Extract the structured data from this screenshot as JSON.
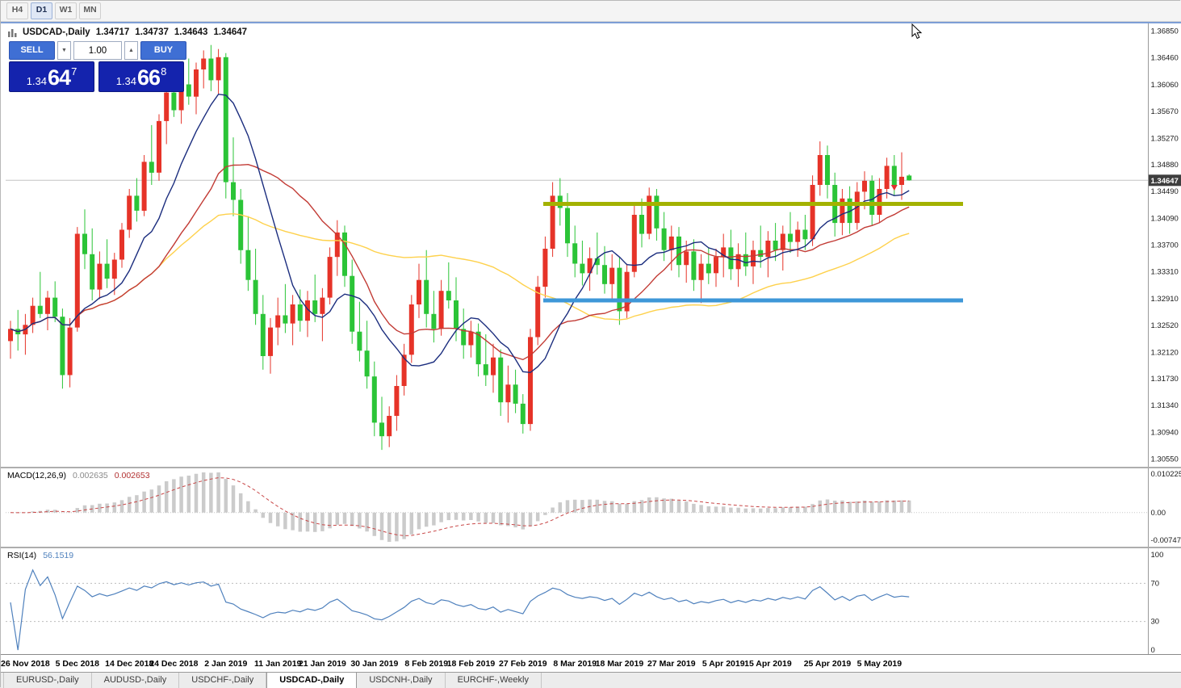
{
  "toolbar": {
    "periods": [
      "H4",
      "D1",
      "W1",
      "MN"
    ],
    "active": "D1"
  },
  "chart_header": {
    "symbol_title": "USDCAD-,Daily",
    "open": "1.34717",
    "high": "1.34737",
    "low": "1.34643",
    "close": "1.34647"
  },
  "trade_panel": {
    "sell_label": "SELL",
    "buy_label": "BUY",
    "volume": "1.00",
    "step_down_icon": "▼",
    "step_up_icon": "▲",
    "sell_price": {
      "prefix": "1.34",
      "big": "64",
      "sup": "7"
    },
    "buy_price": {
      "prefix": "1.34",
      "big": "66",
      "sup": "8"
    }
  },
  "price_scale": {
    "labels": [
      "1.36850",
      "1.36460",
      "1.36060",
      "1.35670",
      "1.35270",
      "1.34880",
      "1.34490",
      "1.34090",
      "1.33700",
      "1.33310",
      "1.32910",
      "1.32520",
      "1.32120",
      "1.31730",
      "1.31340",
      "1.30940",
      "1.30550"
    ],
    "bid": 1.34647,
    "bid_label": "1.34647",
    "badge_color": "#3e3e3e"
  },
  "indicators": {
    "macd": {
      "label": "MACD(12,26,9)",
      "value_main": "0.002635",
      "value_signal": "0.002653",
      "fast": 12,
      "slow": 26,
      "signal": 9,
      "scale_top": "0.010225",
      "scale_zero": "0.00",
      "scale_bottom": "-0.00747",
      "histogram_color": "#cbcbcb",
      "signal_color": "#c84646"
    },
    "rsi": {
      "label": "RSI(14)",
      "value": "56.1519",
      "period": 14,
      "levels": [
        70,
        30
      ],
      "scale_labels": [
        "100",
        "70",
        "30",
        "0"
      ],
      "line_color": "#4f81bd"
    }
  },
  "date_axis": [
    {
      "label": "26 Nov 2018",
      "idx": 2
    },
    {
      "label": "5 Dec 2018",
      "idx": 9
    },
    {
      "label": "14 Dec 2018",
      "idx": 16
    },
    {
      "label": "24 Dec 2018",
      "idx": 22
    },
    {
      "label": "2 Jan 2019",
      "idx": 29
    },
    {
      "label": "11 Jan 2019",
      "idx": 36
    },
    {
      "label": "21 Jan 2019",
      "idx": 42
    },
    {
      "label": "30 Jan 2019",
      "idx": 49
    },
    {
      "label": "8 Feb 2019",
      "idx": 56
    },
    {
      "label": "18 Feb 2019",
      "idx": 62
    },
    {
      "label": "27 Feb 2019",
      "idx": 69
    },
    {
      "label": "8 Mar 2019",
      "idx": 76
    },
    {
      "label": "18 Mar 2019",
      "idx": 82
    },
    {
      "label": "27 Mar 2019",
      "idx": 89
    },
    {
      "label": "5 Apr 2019",
      "idx": 96
    },
    {
      "label": "15 Apr 2019",
      "idx": 102
    },
    {
      "label": "25 Apr 2019",
      "idx": 110
    },
    {
      "label": "5 May 2019",
      "idx": 117
    }
  ],
  "tabs": {
    "items": [
      "EURUSD-,Daily",
      "AUDUSD-,Daily",
      "USDCHF-,Daily",
      "USDCAD-,Daily",
      "USDCNH-,Daily",
      "EURCHF-,Weekly"
    ],
    "active": "USDCAD-,Daily"
  },
  "marker": {
    "idx": 119,
    "price": 1.3452,
    "color": "#e03030"
  },
  "chart_data": {
    "type": "candlestick",
    "symbol": "USDCAD",
    "timeframe": "Daily",
    "ylim": [
      1.3055,
      1.3685
    ],
    "bull_color": "#e63328",
    "bear_color": "#2bc437",
    "ma": [
      {
        "period": 50,
        "color": "#fed14c",
        "name": "SMA50"
      },
      {
        "period": 21,
        "color": "#c23b35",
        "name": "SMA21"
      },
      {
        "period": 10,
        "color": "#1b2d7e",
        "name": "SMA10"
      }
    ],
    "sr_lines": [
      {
        "price": 1.343,
        "x1": 672,
        "x2": 1192,
        "color": "#a3b200",
        "name": "resistance"
      },
      {
        "price": 1.3288,
        "x1": 672,
        "x2": 1192,
        "color": "#3e97d8",
        "name": "support"
      }
    ],
    "candles": [
      [
        1.3228,
        1.3258,
        1.3202,
        1.3246
      ],
      [
        1.3246,
        1.3274,
        1.3214,
        1.3238
      ],
      [
        1.3238,
        1.3268,
        1.3208,
        1.3252
      ],
      [
        1.3252,
        1.3292,
        1.324,
        1.328
      ],
      [
        1.328,
        1.333,
        1.3262,
        1.3268
      ],
      [
        1.3268,
        1.3302,
        1.3244,
        1.3292
      ],
      [
        1.3292,
        1.3316,
        1.3256,
        1.3264
      ],
      [
        1.3264,
        1.3276,
        1.3158,
        1.3178
      ],
      [
        1.3178,
        1.3262,
        1.316,
        1.3248
      ],
      [
        1.3248,
        1.3396,
        1.3242,
        1.3386
      ],
      [
        1.3386,
        1.3422,
        1.3334,
        1.3356
      ],
      [
        1.3356,
        1.3394,
        1.3288,
        1.3304
      ],
      [
        1.3304,
        1.336,
        1.329,
        1.3342
      ],
      [
        1.3342,
        1.3378,
        1.3306,
        1.332
      ],
      [
        1.332,
        1.3358,
        1.3296,
        1.3348
      ],
      [
        1.3348,
        1.3402,
        1.3336,
        1.3392
      ],
      [
        1.3392,
        1.3452,
        1.338,
        1.3442
      ],
      [
        1.3442,
        1.3468,
        1.3404,
        1.342
      ],
      [
        1.342,
        1.3502,
        1.3412,
        1.3492
      ],
      [
        1.3492,
        1.3546,
        1.3458,
        1.3476
      ],
      [
        1.3476,
        1.3562,
        1.3464,
        1.3552
      ],
      [
        1.3552,
        1.3604,
        1.3518,
        1.3594
      ],
      [
        1.3594,
        1.3628,
        1.3558,
        1.3568
      ],
      [
        1.3568,
        1.3614,
        1.3548,
        1.3606
      ],
      [
        1.3606,
        1.3644,
        1.3576,
        1.3588
      ],
      [
        1.3588,
        1.3638,
        1.3562,
        1.3628
      ],
      [
        1.3628,
        1.3656,
        1.36,
        1.3644
      ],
      [
        1.3644,
        1.3664,
        1.3596,
        1.3612
      ],
      [
        1.3612,
        1.3658,
        1.3592,
        1.3646
      ],
      [
        1.3646,
        1.3652,
        1.3438,
        1.3462
      ],
      [
        1.3462,
        1.3528,
        1.3412,
        1.3436
      ],
      [
        1.3436,
        1.3452,
        1.3342,
        1.3362
      ],
      [
        1.3362,
        1.3412,
        1.3302,
        1.3318
      ],
      [
        1.3318,
        1.3364,
        1.3252,
        1.3268
      ],
      [
        1.3268,
        1.3296,
        1.3186,
        1.3206
      ],
      [
        1.3206,
        1.3262,
        1.318,
        1.3248
      ],
      [
        1.3248,
        1.3292,
        1.3222,
        1.3266
      ],
      [
        1.3266,
        1.3312,
        1.324,
        1.3254
      ],
      [
        1.3254,
        1.3296,
        1.3222,
        1.3282
      ],
      [
        1.3282,
        1.3304,
        1.3242,
        1.3258
      ],
      [
        1.3258,
        1.3302,
        1.3234,
        1.3288
      ],
      [
        1.3288,
        1.3326,
        1.3256,
        1.3268
      ],
      [
        1.3268,
        1.3306,
        1.3228,
        1.3292
      ],
      [
        1.3292,
        1.3366,
        1.3282,
        1.3352
      ],
      [
        1.3352,
        1.3406,
        1.3324,
        1.3388
      ],
      [
        1.3388,
        1.3398,
        1.3308,
        1.3324
      ],
      [
        1.3324,
        1.3348,
        1.3224,
        1.3242
      ],
      [
        1.3242,
        1.3286,
        1.3198,
        1.3214
      ],
      [
        1.3214,
        1.3258,
        1.3158,
        1.3176
      ],
      [
        1.3176,
        1.3198,
        1.3088,
        1.3108
      ],
      [
        1.3108,
        1.3146,
        1.3068,
        1.3088
      ],
      [
        1.3088,
        1.3132,
        1.3072,
        1.3118
      ],
      [
        1.3118,
        1.3178,
        1.3096,
        1.3162
      ],
      [
        1.3162,
        1.3224,
        1.3148,
        1.3208
      ],
      [
        1.3208,
        1.3296,
        1.3196,
        1.3282
      ],
      [
        1.3282,
        1.3342,
        1.3262,
        1.3318
      ],
      [
        1.3318,
        1.3362,
        1.3248,
        1.3268
      ],
      [
        1.3268,
        1.3302,
        1.3226,
        1.3246
      ],
      [
        1.3246,
        1.3318,
        1.3236,
        1.3302
      ],
      [
        1.3302,
        1.3344,
        1.3276,
        1.3288
      ],
      [
        1.3288,
        1.3322,
        1.3228,
        1.3246
      ],
      [
        1.3246,
        1.3276,
        1.3202,
        1.3222
      ],
      [
        1.3222,
        1.3258,
        1.3204,
        1.3242
      ],
      [
        1.3242,
        1.3254,
        1.3176,
        1.3194
      ],
      [
        1.3194,
        1.3238,
        1.3162,
        1.3178
      ],
      [
        1.3178,
        1.3224,
        1.3152,
        1.3204
      ],
      [
        1.3204,
        1.3216,
        1.3118,
        1.3138
      ],
      [
        1.3138,
        1.3192,
        1.3108,
        1.3164
      ],
      [
        1.3164,
        1.3186,
        1.3122,
        1.3136
      ],
      [
        1.3136,
        1.315,
        1.3092,
        1.3106
      ],
      [
        1.3106,
        1.3246,
        1.3096,
        1.3234
      ],
      [
        1.3234,
        1.3324,
        1.3222,
        1.3308
      ],
      [
        1.3308,
        1.3382,
        1.3292,
        1.3364
      ],
      [
        1.3364,
        1.3462,
        1.3352,
        1.3442
      ],
      [
        1.3442,
        1.3468,
        1.3398,
        1.3424
      ],
      [
        1.3424,
        1.3446,
        1.3352,
        1.3372
      ],
      [
        1.3372,
        1.3398,
        1.3322,
        1.3342
      ],
      [
        1.3342,
        1.3376,
        1.331,
        1.3328
      ],
      [
        1.3328,
        1.3366,
        1.3302,
        1.335
      ],
      [
        1.335,
        1.3388,
        1.3326,
        1.334
      ],
      [
        1.334,
        1.3368,
        1.3298,
        1.3312
      ],
      [
        1.3312,
        1.3356,
        1.3288,
        1.3336
      ],
      [
        1.3336,
        1.3352,
        1.3252,
        1.3272
      ],
      [
        1.3272,
        1.3342,
        1.3262,
        1.333
      ],
      [
        1.333,
        1.3432,
        1.3322,
        1.3414
      ],
      [
        1.3414,
        1.3438,
        1.3366,
        1.3386
      ],
      [
        1.3386,
        1.3454,
        1.3378,
        1.3442
      ],
      [
        1.3442,
        1.3452,
        1.3376,
        1.3394
      ],
      [
        1.3394,
        1.3418,
        1.3346,
        1.3362
      ],
      [
        1.3362,
        1.3398,
        1.3332,
        1.3382
      ],
      [
        1.3382,
        1.3396,
        1.3322,
        1.334
      ],
      [
        1.334,
        1.3376,
        1.3314,
        1.336
      ],
      [
        1.336,
        1.3378,
        1.3302,
        1.3318
      ],
      [
        1.3318,
        1.3356,
        1.3284,
        1.3342
      ],
      [
        1.3342,
        1.3366,
        1.3312,
        1.3328
      ],
      [
        1.3328,
        1.3364,
        1.3308,
        1.3352
      ],
      [
        1.3352,
        1.3386,
        1.3322,
        1.3366
      ],
      [
        1.3366,
        1.3392,
        1.3318,
        1.3334
      ],
      [
        1.3334,
        1.3372,
        1.3308,
        1.3356
      ],
      [
        1.3356,
        1.3388,
        1.3324,
        1.3338
      ],
      [
        1.3338,
        1.3376,
        1.3312,
        1.3362
      ],
      [
        1.3362,
        1.3398,
        1.3336,
        1.3352
      ],
      [
        1.3352,
        1.339,
        1.3322,
        1.3376
      ],
      [
        1.3376,
        1.3402,
        1.3346,
        1.3362
      ],
      [
        1.3362,
        1.3398,
        1.3332,
        1.3386
      ],
      [
        1.3386,
        1.3418,
        1.3358,
        1.3374
      ],
      [
        1.3374,
        1.3404,
        1.3352,
        1.3392
      ],
      [
        1.3392,
        1.3414,
        1.3362,
        1.3378
      ],
      [
        1.3378,
        1.3472,
        1.3368,
        1.3458
      ],
      [
        1.3458,
        1.3522,
        1.3442,
        1.3502
      ],
      [
        1.3502,
        1.3516,
        1.3438,
        1.3458
      ],
      [
        1.3458,
        1.3476,
        1.3382,
        1.3402
      ],
      [
        1.3402,
        1.3452,
        1.3384,
        1.3438
      ],
      [
        1.3438,
        1.3456,
        1.3386,
        1.3402
      ],
      [
        1.3402,
        1.3462,
        1.3392,
        1.3448
      ],
      [
        1.3448,
        1.3478,
        1.3422,
        1.3464
      ],
      [
        1.3464,
        1.3472,
        1.3398,
        1.3414
      ],
      [
        1.3414,
        1.3468,
        1.3402,
        1.3452
      ],
      [
        1.3452,
        1.3498,
        1.3438,
        1.3486
      ],
      [
        1.3486,
        1.3502,
        1.3442,
        1.3458
      ],
      [
        1.3458,
        1.3506,
        1.3436,
        1.347
      ],
      [
        1.34717,
        1.34737,
        1.34643,
        1.34647
      ]
    ]
  }
}
